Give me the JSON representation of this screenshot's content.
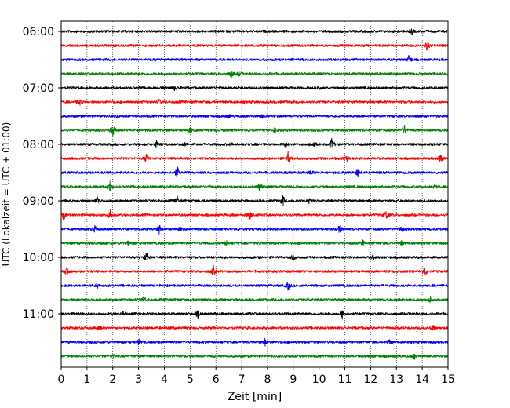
{
  "chart_data": {
    "type": "line",
    "subtype": "helicorder",
    "xlabel": "Zeit  [min]",
    "ylabel": "UTC (Lokalzeit = UTC + 01:00)",
    "xlim": [
      0,
      15
    ],
    "x_ticks": [
      0,
      1,
      2,
      3,
      4,
      5,
      6,
      7,
      8,
      9,
      10,
      11,
      12,
      13,
      14,
      15
    ],
    "y_tick_labels": [
      "06:00",
      "07:00",
      "08:00",
      "09:00",
      "10:00",
      "11:00"
    ],
    "grid": "vertical dotted lines at each minute",
    "trace_colors": [
      "#000000",
      "#ff0000",
      "#0000ff",
      "#008000"
    ],
    "rows": [
      {
        "start": "06:00",
        "color": "#000000",
        "events": [
          [
            13.6,
            0.4
          ]
        ]
      },
      {
        "start": "06:15",
        "color": "#ff0000",
        "events": [
          [
            14.2,
            1.0
          ]
        ]
      },
      {
        "start": "06:30",
        "color": "#0000ff",
        "events": [
          [
            13.5,
            0.8
          ]
        ]
      },
      {
        "start": "06:45",
        "color": "#008000",
        "events": [
          [
            6.6,
            0.6
          ],
          [
            6.9,
            0.4
          ]
        ]
      },
      {
        "start": "07:00",
        "color": "#000000",
        "events": [
          [
            10.0,
            0.4
          ],
          [
            4.4,
            0.3
          ]
        ]
      },
      {
        "start": "07:15",
        "color": "#ff0000",
        "events": [
          [
            0.7,
            0.7
          ],
          [
            3.8,
            0.4
          ]
        ]
      },
      {
        "start": "07:30",
        "color": "#0000ff",
        "events": [
          [
            2.2,
            0.3
          ],
          [
            6.5,
            0.3
          ],
          [
            7.8,
            0.3
          ]
        ]
      },
      {
        "start": "07:45",
        "color": "#008000",
        "events": [
          [
            2.0,
            1.0
          ],
          [
            5.0,
            0.4
          ],
          [
            8.3,
            0.4
          ],
          [
            13.3,
            0.9
          ]
        ]
      },
      {
        "start": "08:00",
        "color": "#000000",
        "events": [
          [
            3.7,
            0.5
          ],
          [
            4.8,
            0.3
          ],
          [
            6.6,
            0.3
          ],
          [
            8.7,
            0.4
          ],
          [
            9.8,
            0.5
          ],
          [
            10.5,
            1.0
          ]
        ]
      },
      {
        "start": "08:15",
        "color": "#ff0000",
        "events": [
          [
            3.3,
            0.8
          ],
          [
            8.8,
            0.9
          ],
          [
            11.1,
            0.4
          ],
          [
            14.7,
            1.0
          ]
        ]
      },
      {
        "start": "08:30",
        "color": "#0000ff",
        "events": [
          [
            4.5,
            1.0
          ],
          [
            9.7,
            0.3
          ],
          [
            11.5,
            0.7
          ]
        ]
      },
      {
        "start": "08:45",
        "color": "#008000",
        "events": [
          [
            1.9,
            1.0
          ],
          [
            7.7,
            0.8
          ],
          [
            14.5,
            0.3
          ]
        ]
      },
      {
        "start": "09:00",
        "color": "#000000",
        "events": [
          [
            1.4,
            0.8
          ],
          [
            4.5,
            0.7
          ],
          [
            8.6,
            0.9
          ],
          [
            9.6,
            0.4
          ]
        ]
      },
      {
        "start": "09:15",
        "color": "#ff0000",
        "events": [
          [
            0.1,
            0.8
          ],
          [
            1.9,
            0.8
          ],
          [
            7.3,
            0.9
          ],
          [
            12.6,
            0.8
          ]
        ]
      },
      {
        "start": "09:30",
        "color": "#0000ff",
        "events": [
          [
            1.3,
            0.6
          ],
          [
            3.8,
            0.8
          ],
          [
            4.6,
            0.3
          ],
          [
            10.8,
            0.7
          ],
          [
            13.2,
            0.4
          ]
        ]
      },
      {
        "start": "09:45",
        "color": "#008000",
        "events": [
          [
            2.6,
            0.3
          ],
          [
            6.4,
            0.4
          ],
          [
            11.7,
            0.4
          ],
          [
            13.2,
            0.3
          ]
        ]
      },
      {
        "start": "10:00",
        "color": "#000000",
        "events": [
          [
            3.3,
            0.8
          ],
          [
            9.0,
            0.7
          ],
          [
            12.1,
            0.3
          ]
        ]
      },
      {
        "start": "10:15",
        "color": "#ff0000",
        "events": [
          [
            0.2,
            0.6
          ],
          [
            5.9,
            0.8
          ],
          [
            14.1,
            0.9
          ]
        ]
      },
      {
        "start": "10:30",
        "color": "#0000ff",
        "events": [
          [
            8.8,
            0.7
          ],
          [
            1.4,
            0.3
          ]
        ]
      },
      {
        "start": "10:45",
        "color": "#008000",
        "events": [
          [
            3.2,
            0.6
          ],
          [
            14.3,
            0.6
          ]
        ]
      },
      {
        "start": "11:00",
        "color": "#000000",
        "events": [
          [
            5.3,
            0.6
          ],
          [
            10.9,
            0.7
          ],
          [
            2.4,
            0.3
          ]
        ]
      },
      {
        "start": "11:15",
        "color": "#ff0000",
        "events": [
          [
            14.4,
            0.7
          ],
          [
            1.5,
            0.3
          ]
        ]
      },
      {
        "start": "11:30",
        "color": "#0000ff",
        "events": [
          [
            3.0,
            0.5
          ],
          [
            7.9,
            0.6
          ],
          [
            12.7,
            0.5
          ]
        ]
      },
      {
        "start": "11:45",
        "color": "#008000",
        "events": [
          [
            2.0,
            0.3
          ],
          [
            13.7,
            0.5
          ]
        ]
      }
    ]
  }
}
